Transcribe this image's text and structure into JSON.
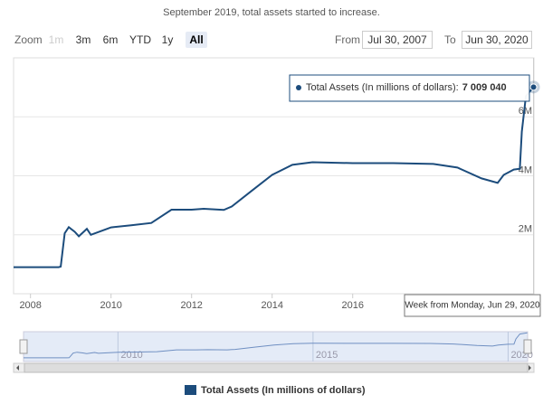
{
  "chart_data": {
    "type": "line",
    "title": "September 2019, total assets started to increase.",
    "x": [
      2007.58,
      2008.7,
      2008.75,
      2008.85,
      2008.95,
      2009.1,
      2009.2,
      2009.4,
      2009.5,
      2010.0,
      2010.5,
      2011.0,
      2011.5,
      2012.0,
      2012.3,
      2012.8,
      2013.0,
      2013.5,
      2014.0,
      2014.5,
      2015.0,
      2016.0,
      2017.0,
      2018.0,
      2018.6,
      2019.2,
      2019.6,
      2019.75,
      2020.0,
      2020.15,
      2020.2,
      2020.3,
      2020.49
    ],
    "series": [
      {
        "name": "Total Assets (In millions of dollars)",
        "color": "#1c4c7c",
        "values": [
          900000,
          900000,
          920000,
          2050000,
          2260000,
          2100000,
          1950000,
          2200000,
          2000000,
          2250000,
          2320000,
          2400000,
          2850000,
          2850000,
          2880000,
          2840000,
          2960000,
          3500000,
          4030000,
          4370000,
          4460000,
          4430000,
          4430000,
          4400000,
          4280000,
          3910000,
          3760000,
          4030000,
          4210000,
          4240000,
          5500000,
          6700000,
          7009040
        ]
      }
    ],
    "xlim": [
      2007.58,
      2020.5
    ],
    "ylim": [
      0,
      8000000
    ],
    "xticks": [
      2008,
      2010,
      2012,
      2014,
      2016
    ],
    "yticks": [
      {
        "value": 2000000,
        "label": "2M"
      },
      {
        "value": 4000000,
        "label": "4M"
      },
      {
        "value": 6000000,
        "label": "6M"
      }
    ],
    "grid": true,
    "tooltip": {
      "series_label": "Total Assets (In millions of dollars):",
      "label": "7 009 040",
      "x_label": "Week from Monday, Jun 29, 2020"
    },
    "navigator": {
      "xticks": [
        2010,
        2015,
        2020
      ]
    }
  },
  "range_selector": {
    "label": "Zoom",
    "buttons": [
      "1m",
      "3m",
      "6m",
      "YTD",
      "1y",
      "All"
    ],
    "disabled": [
      "1m"
    ],
    "selected": "All",
    "from_label": "From",
    "from": "Jul 30, 2007",
    "to_label": "To",
    "to": "Jun 30, 2020"
  }
}
